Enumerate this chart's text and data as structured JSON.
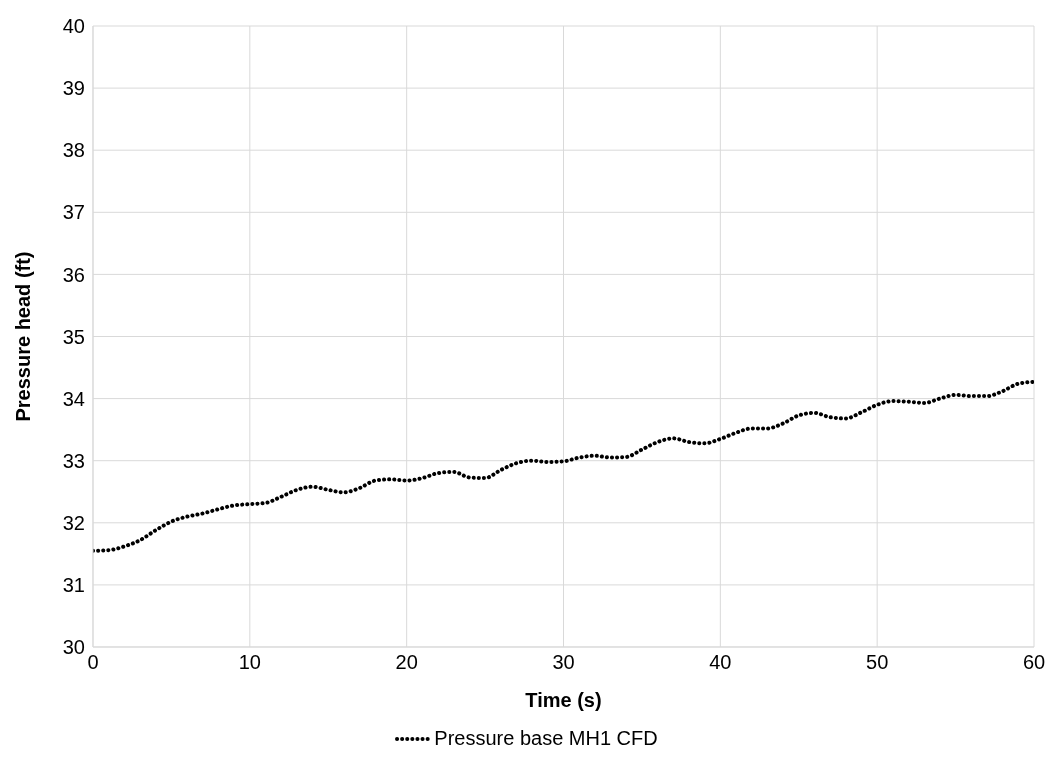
{
  "chart_data": {
    "type": "line",
    "xlabel": "Time (s)",
    "ylabel": "Pressure head (ft)",
    "x": [
      0,
      1,
      2,
      3,
      4,
      5,
      6,
      7,
      8,
      9,
      10,
      11,
      12,
      13,
      14,
      15,
      16,
      17,
      18,
      19,
      20,
      21,
      22,
      23,
      24,
      25,
      26,
      27,
      28,
      29,
      30,
      31,
      32,
      33,
      34,
      35,
      36,
      37,
      38,
      39,
      40,
      41,
      42,
      43,
      44,
      45,
      46,
      47,
      48,
      49,
      50,
      51,
      52,
      53,
      54,
      55,
      56,
      57,
      58,
      59,
      60
    ],
    "series": [
      {
        "name": "Pressure base MH1 CFD",
        "color": "#000000",
        "values": [
          31.55,
          31.56,
          31.62,
          31.72,
          31.88,
          32.02,
          32.1,
          32.15,
          32.22,
          32.28,
          32.3,
          32.32,
          32.42,
          32.53,
          32.58,
          32.53,
          32.49,
          32.56,
          32.68,
          32.7,
          32.68,
          32.72,
          32.8,
          32.82,
          32.73,
          32.72,
          32.85,
          32.96,
          33.0,
          32.98,
          32.99,
          33.05,
          33.08,
          33.05,
          33.06,
          33.18,
          33.3,
          33.36,
          33.3,
          33.28,
          33.35,
          33.45,
          33.52,
          33.52,
          33.6,
          33.73,
          33.77,
          33.7,
          33.68,
          33.78,
          33.9,
          33.96,
          33.95,
          33.93,
          34.0,
          34.06,
          34.04,
          34.04,
          34.12,
          34.24,
          34.27
        ]
      }
    ],
    "xlim": [
      0,
      60
    ],
    "xticks": [
      0,
      10,
      20,
      30,
      40,
      50,
      60
    ],
    "ylim": [
      30,
      40
    ],
    "yticks": [
      30,
      31,
      32,
      33,
      34,
      35,
      36,
      37,
      38,
      39,
      40
    ],
    "grid": true,
    "legend": "bottom",
    "marker": "none",
    "line_style": "dotted"
  }
}
